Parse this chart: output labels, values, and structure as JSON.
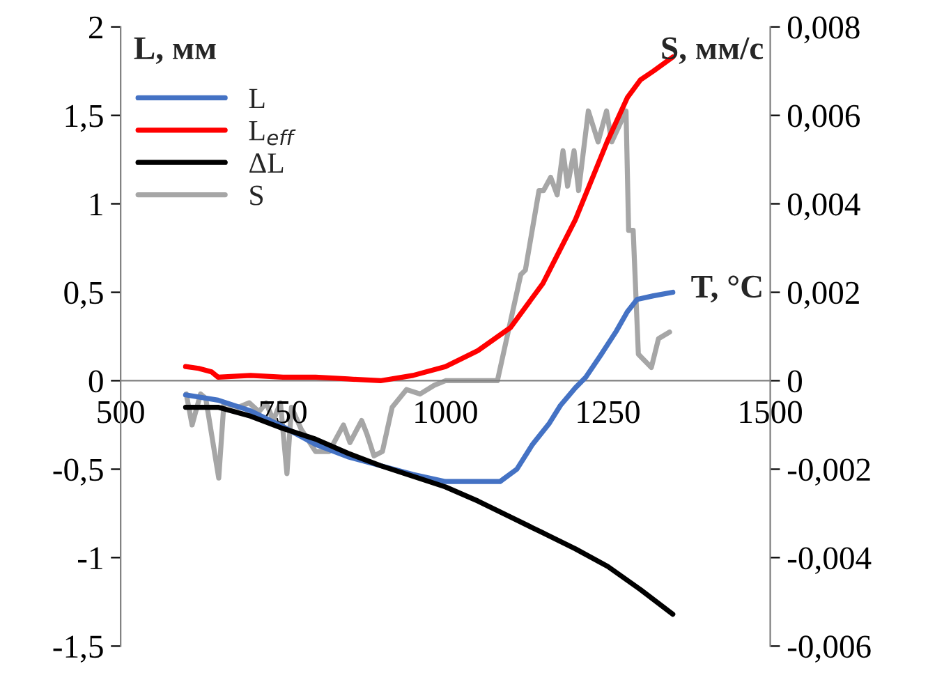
{
  "chart_data": {
    "type": "line",
    "xlim": [
      500,
      1500
    ],
    "xticks": [
      500,
      750,
      1000,
      1250,
      1500
    ],
    "ylim": [
      -1.5,
      2
    ],
    "yticks": [
      {
        "value": -1.5,
        "label": "-1,5"
      },
      {
        "value": -1,
        "label": "-1"
      },
      {
        "value": -0.5,
        "label": "-0,5"
      },
      0,
      {
        "value": 0.5,
        "label": "0,5"
      },
      1,
      {
        "value": 1.5,
        "label": "1,5"
      },
      2
    ],
    "y2lim": [
      -0.006,
      0.008
    ],
    "y2ticks": [
      {
        "value": -0.006,
        "label": "-0,006"
      },
      {
        "value": -0.004,
        "label": "-0,004"
      },
      {
        "value": -0.002,
        "label": "-0,002"
      },
      0,
      {
        "value": 0.002,
        "label": "0,002"
      },
      {
        "value": 0.004,
        "label": "0,004"
      },
      {
        "value": 0.006,
        "label": "0,006"
      },
      {
        "value": 0.008,
        "label": "0,008"
      }
    ],
    "annotations": [
      "L, мм",
      "S, мм/с",
      "T, °C"
    ],
    "legend": "top left",
    "grid": false,
    "series": [
      {
        "name": "L",
        "color": "#4472c4",
        "x": [
          600,
          650,
          700,
          750,
          800,
          850,
          900,
          950,
          1000,
          1050,
          1084,
          1110,
          1134,
          1160,
          1177,
          1200,
          1216,
          1240,
          1263,
          1280,
          1295,
          1320,
          1350
        ],
        "values": [
          -0.08,
          -0.11,
          -0.17,
          -0.26,
          -0.36,
          -0.43,
          -0.48,
          -0.53,
          -0.57,
          -0.57,
          -0.57,
          -0.5,
          -0.36,
          -0.24,
          -0.14,
          -0.04,
          0.02,
          0.15,
          0.28,
          0.39,
          0.46,
          0.48,
          0.5
        ]
      },
      {
        "name": "L$_{eff}$",
        "color": "#ff0000",
        "x": [
          600,
          620,
          640,
          650,
          700,
          750,
          800,
          850,
          900,
          950,
          1000,
          1050,
          1100,
          1150,
          1200,
          1250,
          1280,
          1300,
          1320,
          1350
        ],
        "values": [
          0.08,
          0.07,
          0.05,
          0.02,
          0.03,
          0.02,
          0.02,
          0.01,
          0.0,
          0.03,
          0.08,
          0.17,
          0.3,
          0.55,
          0.91,
          1.36,
          1.6,
          1.7,
          1.75,
          1.83
        ]
      },
      {
        "name": "ΔL",
        "color": "#000000",
        "x": [
          600,
          650,
          700,
          750,
          800,
          850,
          900,
          950,
          1000,
          1050,
          1100,
          1150,
          1200,
          1250,
          1300,
          1350
        ],
        "values": [
          -0.15,
          -0.15,
          -0.2,
          -0.27,
          -0.33,
          -0.41,
          -0.48,
          -0.54,
          -0.6,
          -0.68,
          -0.77,
          -0.86,
          -0.95,
          -1.05,
          -1.18,
          -1.32
        ]
      },
      {
        "name": "S",
        "color": "#a6a6a6",
        "axis": "y2",
        "x": [
          601,
          610,
          623,
          631,
          651,
          659,
          681,
          698,
          713,
          724,
          735,
          746,
          756,
          763,
          778,
          800,
          821,
          843,
          853,
          871,
          879,
          890,
          903,
          918,
          940,
          961,
          983,
          1000,
          1015,
          1080,
          1116,
          1123,
          1144,
          1151,
          1162,
          1172,
          1181,
          1188,
          1198,
          1205,
          1220,
          1235,
          1248,
          1256,
          1278,
          1282,
          1289,
          1297,
          1317,
          1328,
          1345
        ],
        "values": [
          -0.0003,
          -0.001,
          -0.0003,
          -0.0004,
          -0.0022,
          -0.0005,
          -0.0006,
          -0.0005,
          -0.0007,
          -0.0005,
          -0.0009,
          -0.0005,
          -0.0021,
          -0.0006,
          -0.0011,
          -0.0016,
          -0.0016,
          -0.001,
          -0.0014,
          -0.0009,
          -0.0012,
          -0.0017,
          -0.0016,
          -0.0006,
          -0.0002,
          -0.0003,
          -0.0001,
          0.0,
          0.0,
          0.0,
          0.0024,
          0.0025,
          0.0043,
          0.0043,
          0.0046,
          0.0042,
          0.0052,
          0.0044,
          0.0052,
          0.0043,
          0.0061,
          0.0054,
          0.0061,
          0.0054,
          0.0061,
          0.0034,
          0.0034,
          0.0006,
          0.0003,
          0.00095,
          0.0011
        ]
      }
    ]
  }
}
